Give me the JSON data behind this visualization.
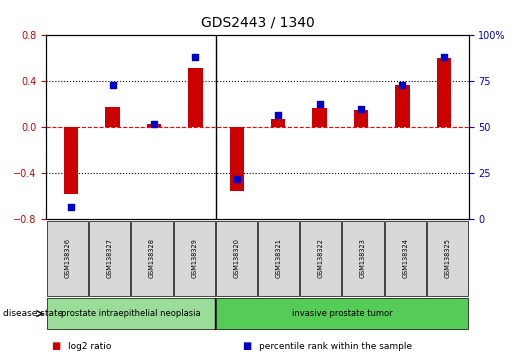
{
  "title": "GDS2443 / 1340",
  "samples": [
    "GSM138326",
    "GSM138327",
    "GSM138328",
    "GSM138329",
    "GSM138320",
    "GSM138321",
    "GSM138322",
    "GSM138323",
    "GSM138324",
    "GSM138325"
  ],
  "log2_ratio": [
    -0.58,
    0.18,
    0.03,
    0.52,
    -0.55,
    0.07,
    0.17,
    0.15,
    0.37,
    0.6
  ],
  "percentile_rank": [
    7,
    73,
    52,
    88,
    22,
    57,
    63,
    60,
    73,
    88
  ],
  "bar_color": "#cc0000",
  "dot_color": "#0000cc",
  "ylim_left": [
    -0.8,
    0.8
  ],
  "ylim_right": [
    0,
    100
  ],
  "yticks_left": [
    -0.8,
    -0.4,
    0.0,
    0.4,
    0.8
  ],
  "yticks_right": [
    0,
    25,
    50,
    75,
    100
  ],
  "yticklabels_right": [
    "0",
    "25",
    "50",
    "75",
    "100%"
  ],
  "groups": [
    {
      "label": "prostate intraepithelial neoplasia",
      "indices": [
        0,
        1,
        2,
        3
      ],
      "color": "#99dd99"
    },
    {
      "label": "invasive prostate tumor",
      "indices": [
        4,
        5,
        6,
        7,
        8,
        9
      ],
      "color": "#55cc55"
    }
  ],
  "disease_state_label": "disease state",
  "legend_items": [
    {
      "label": "log2 ratio",
      "color": "#cc0000"
    },
    {
      "label": "percentile rank within the sample",
      "color": "#0000cc"
    }
  ],
  "tick_label_color_left": "#cc0000",
  "tick_label_color_right": "#0000cc",
  "separator_after": 3
}
